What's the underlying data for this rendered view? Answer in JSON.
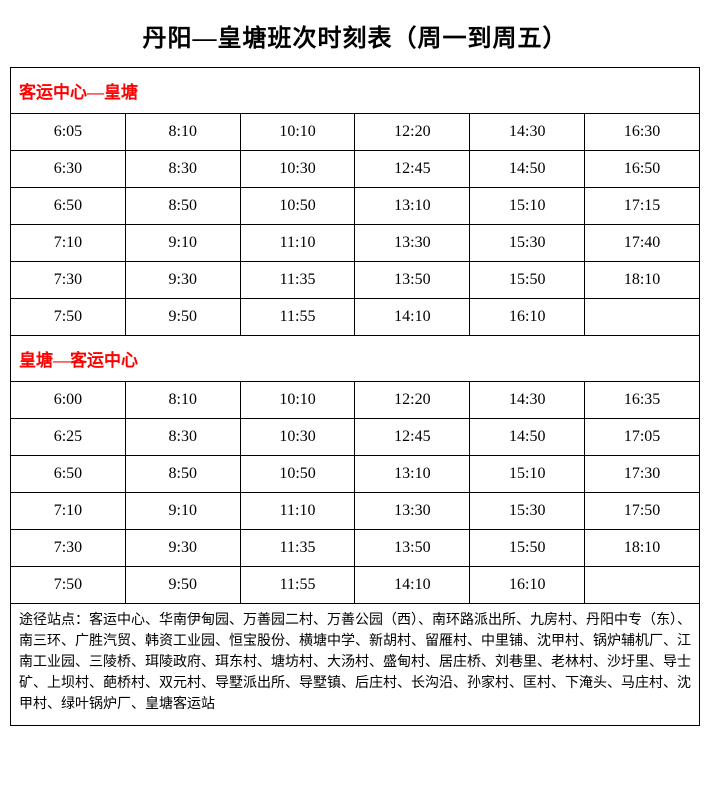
{
  "title": "丹阳—皇塘班次时刻表（周一到周五）",
  "section1": {
    "header": "客运中心—皇塘",
    "rows": [
      [
        "6:05",
        "8:10",
        "10:10",
        "12:20",
        "14:30",
        "16:30"
      ],
      [
        "6:30",
        "8:30",
        "10:30",
        "12:45",
        "14:50",
        "16:50"
      ],
      [
        "6:50",
        "8:50",
        "10:50",
        "13:10",
        "15:10",
        "17:15"
      ],
      [
        "7:10",
        "9:10",
        "11:10",
        "13:30",
        "15:30",
        "17:40"
      ],
      [
        "7:30",
        "9:30",
        "11:35",
        "13:50",
        "15:50",
        "18:10"
      ],
      [
        "7:50",
        "9:50",
        "11:55",
        "14:10",
        "16:10",
        ""
      ]
    ]
  },
  "section2": {
    "header": "皇塘—客运中心",
    "rows": [
      [
        "6:00",
        "8:10",
        "10:10",
        "12:20",
        "14:30",
        "16:35"
      ],
      [
        "6:25",
        "8:30",
        "10:30",
        "12:45",
        "14:50",
        "17:05"
      ],
      [
        "6:50",
        "8:50",
        "10:50",
        "13:10",
        "15:10",
        "17:30"
      ],
      [
        "7:10",
        "9:10",
        "11:10",
        "13:30",
        "15:30",
        "17:50"
      ],
      [
        "7:30",
        "9:30",
        "11:35",
        "13:50",
        "15:50",
        "18:10"
      ],
      [
        "7:50",
        "9:50",
        "11:55",
        "14:10",
        "16:10",
        ""
      ]
    ]
  },
  "footer": "途径站点：客运中心、华南伊甸园、万善园二村、万善公园（西）、南环路派出所、九房村、丹阳中专（东）、南三环、广胜汽贸、韩资工业园、恒宝股份、横塘中学、新胡村、留雁村、中里铺、沈甲村、锅炉辅机厂、江南工业园、三陵桥、珥陵政府、珥东村、塘坊村、大汤村、盛甸村、居庄桥、刘巷里、老林村、沙圩里、导士矿、上坝村、葩桥村、双元村、导墅派出所、导墅镇、后庄村、长沟沿、孙家村、匡村、下淹头、马庄村、沈甲村、绿叶锅炉厂、皇塘客运站",
  "colors": {
    "border": "#000000",
    "title_text": "#000000",
    "section_header_text": "#ff0000",
    "cell_text": "#000000",
    "background": "#ffffff"
  },
  "layout": {
    "columns": 6,
    "title_fontsize": 24,
    "section_header_fontsize": 17,
    "cell_fontsize": 16,
    "footer_fontsize": 14
  }
}
